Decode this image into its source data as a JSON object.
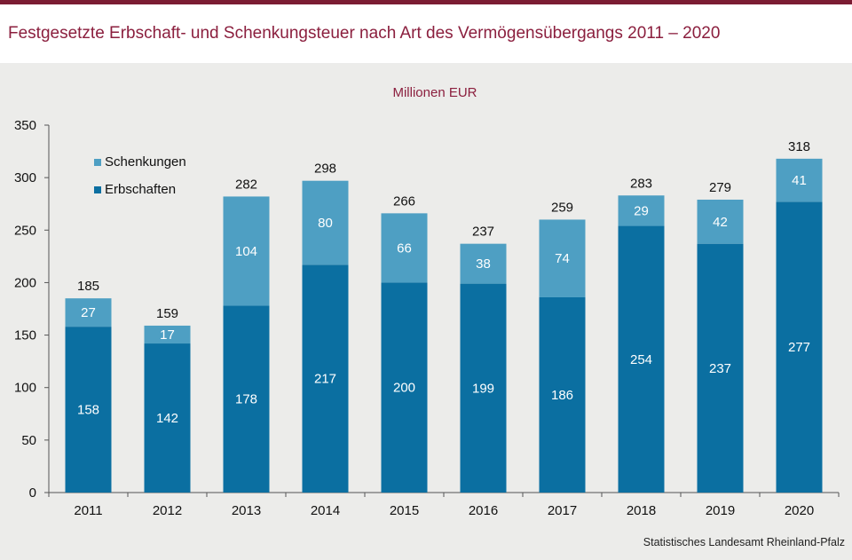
{
  "title": "Festgesetzte Erbschaft- und Schenkungsteuer nach Art des Vermögensübergangs 2011 – 2020",
  "unit": "Millionen  EUR",
  "source": "Statistisches Landesamt Rheinland-Pfalz",
  "colors": {
    "header_accent": "#7b1c33",
    "title_text": "#8b1f3e",
    "erbschaften": "#0b6fa1",
    "schenkungen": "#4e9fc3"
  },
  "chart_data": {
    "type": "bar",
    "stacked": true,
    "categories": [
      "2011",
      "2012",
      "2013",
      "2014",
      "2015",
      "2016",
      "2017",
      "2018",
      "2019",
      "2020"
    ],
    "series": [
      {
        "name": "Erbschaften",
        "values": [
          158,
          142,
          178,
          217,
          200,
          199,
          186,
          254,
          237,
          277
        ]
      },
      {
        "name": "Schenkungen",
        "values": [
          27,
          17,
          104,
          80,
          66,
          38,
          74,
          29,
          42,
          41
        ]
      }
    ],
    "totals": [
      185,
      159,
      282,
      298,
      266,
      237,
      259,
      283,
      279,
      318
    ],
    "ylim": [
      0,
      350
    ],
    "yticks": [
      0,
      50,
      100,
      150,
      200,
      250,
      300,
      350
    ],
    "legend": [
      "Schenkungen",
      "Erbschaften"
    ],
    "legend_position": "top-left",
    "grid": false
  }
}
